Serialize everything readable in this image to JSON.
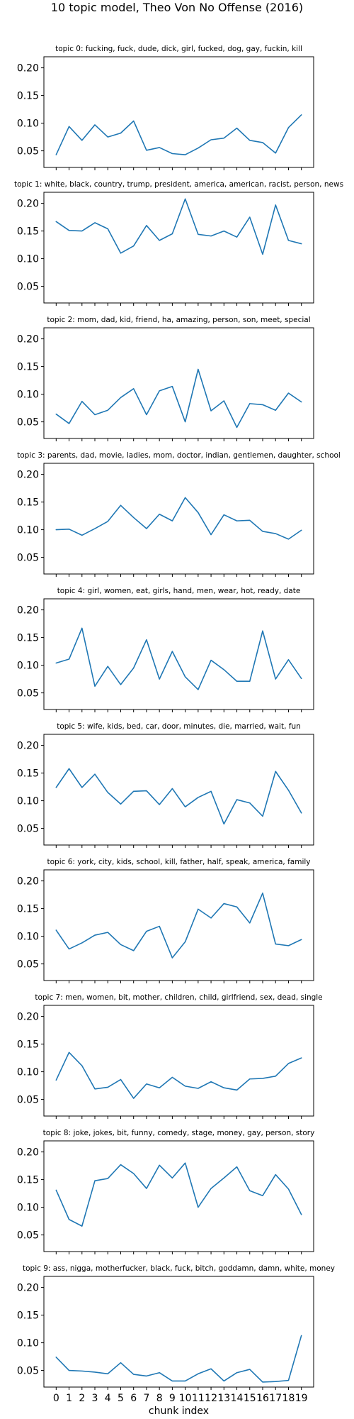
{
  "figure": {
    "title": "10 topic model, Theo Von No Offense (2016)"
  },
  "chart_data": [
    {
      "type": "line",
      "title": "topic 0: fucking, fuck, dude, dick, girl, fucked, dog, gay, fuckin, kill",
      "xlabel": "",
      "ylabel": "",
      "x": [
        0,
        1,
        2,
        3,
        4,
        5,
        6,
        7,
        8,
        9,
        10,
        11,
        12,
        13,
        14,
        15,
        16,
        17,
        18,
        19
      ],
      "ylim": [
        0.02,
        0.22
      ],
      "yticks": [
        "0.05",
        "0.10",
        "0.15",
        "0.20"
      ],
      "grid": false,
      "values": [
        0.043,
        0.094,
        0.069,
        0.097,
        0.075,
        0.082,
        0.104,
        0.051,
        0.056,
        0.045,
        0.043,
        0.055,
        0.07,
        0.073,
        0.091,
        0.069,
        0.065,
        0.046,
        0.092,
        0.115
      ]
    },
    {
      "type": "line",
      "title": "topic 1: white, black, country, trump, president, america, american, racist, person, news",
      "xlabel": "",
      "ylabel": "",
      "x": [
        0,
        1,
        2,
        3,
        4,
        5,
        6,
        7,
        8,
        9,
        10,
        11,
        12,
        13,
        14,
        15,
        16,
        17,
        18,
        19
      ],
      "ylim": [
        0.02,
        0.22
      ],
      "yticks": [
        "0.05",
        "0.10",
        "0.15",
        "0.20"
      ],
      "grid": false,
      "values": [
        0.167,
        0.151,
        0.15,
        0.165,
        0.154,
        0.11,
        0.123,
        0.16,
        0.133,
        0.145,
        0.208,
        0.144,
        0.141,
        0.15,
        0.139,
        0.175,
        0.108,
        0.197,
        0.133,
        0.127
      ]
    },
    {
      "type": "line",
      "title": "topic 2: mom, dad, kid, friend, ha, amazing, person, son, meet, special",
      "xlabel": "",
      "ylabel": "",
      "x": [
        0,
        1,
        2,
        3,
        4,
        5,
        6,
        7,
        8,
        9,
        10,
        11,
        12,
        13,
        14,
        15,
        16,
        17,
        18,
        19
      ],
      "ylim": [
        0.02,
        0.22
      ],
      "yticks": [
        "0.05",
        "0.10",
        "0.15",
        "0.20"
      ],
      "grid": false,
      "values": [
        0.064,
        0.047,
        0.087,
        0.063,
        0.071,
        0.094,
        0.11,
        0.063,
        0.106,
        0.114,
        0.05,
        0.145,
        0.07,
        0.088,
        0.04,
        0.083,
        0.081,
        0.071,
        0.102,
        0.086
      ]
    },
    {
      "type": "line",
      "title": "topic 3: parents, dad, movie, ladies, mom, doctor, indian, gentlemen, daughter, school",
      "xlabel": "",
      "ylabel": "",
      "x": [
        0,
        1,
        2,
        3,
        4,
        5,
        6,
        7,
        8,
        9,
        10,
        11,
        12,
        13,
        14,
        15,
        16,
        17,
        18,
        19
      ],
      "ylim": [
        0.02,
        0.22
      ],
      "yticks": [
        "0.05",
        "0.10",
        "0.15",
        "0.20"
      ],
      "grid": false,
      "values": [
        0.1,
        0.101,
        0.09,
        0.102,
        0.115,
        0.144,
        0.122,
        0.102,
        0.128,
        0.116,
        0.158,
        0.131,
        0.091,
        0.127,
        0.116,
        0.117,
        0.097,
        0.093,
        0.083,
        0.099
      ]
    },
    {
      "type": "line",
      "title": "topic 4: girl, women, eat, girls, hand, men, wear, hot, ready, date",
      "xlabel": "",
      "ylabel": "",
      "x": [
        0,
        1,
        2,
        3,
        4,
        5,
        6,
        7,
        8,
        9,
        10,
        11,
        12,
        13,
        14,
        15,
        16,
        17,
        18,
        19
      ],
      "ylim": [
        0.02,
        0.22
      ],
      "yticks": [
        "0.05",
        "0.10",
        "0.15",
        "0.20"
      ],
      "grid": false,
      "values": [
        0.104,
        0.111,
        0.167,
        0.062,
        0.098,
        0.065,
        0.095,
        0.146,
        0.075,
        0.125,
        0.079,
        0.056,
        0.109,
        0.092,
        0.071,
        0.071,
        0.162,
        0.075,
        0.11,
        0.076
      ]
    },
    {
      "type": "line",
      "title": "topic 5: wife, kids, bed, car, door, minutes, die, married, wait, fun",
      "xlabel": "",
      "ylabel": "",
      "x": [
        0,
        1,
        2,
        3,
        4,
        5,
        6,
        7,
        8,
        9,
        10,
        11,
        12,
        13,
        14,
        15,
        16,
        17,
        18,
        19
      ],
      "ylim": [
        0.02,
        0.22
      ],
      "yticks": [
        "0.05",
        "0.10",
        "0.15",
        "0.20"
      ],
      "grid": false,
      "values": [
        0.124,
        0.158,
        0.124,
        0.148,
        0.115,
        0.094,
        0.117,
        0.118,
        0.093,
        0.122,
        0.089,
        0.106,
        0.117,
        0.058,
        0.102,
        0.096,
        0.072,
        0.153,
        0.119,
        0.078
      ]
    },
    {
      "type": "line",
      "title": "topic 6: york, city, kids, school, kill, father, half, speak, america, family",
      "xlabel": "",
      "ylabel": "",
      "x": [
        0,
        1,
        2,
        3,
        4,
        5,
        6,
        7,
        8,
        9,
        10,
        11,
        12,
        13,
        14,
        15,
        16,
        17,
        18,
        19
      ],
      "ylim": [
        0.02,
        0.22
      ],
      "yticks": [
        "0.05",
        "0.10",
        "0.15",
        "0.20"
      ],
      "grid": false,
      "values": [
        0.111,
        0.077,
        0.088,
        0.102,
        0.107,
        0.085,
        0.074,
        0.109,
        0.118,
        0.061,
        0.09,
        0.149,
        0.133,
        0.159,
        0.153,
        0.124,
        0.178,
        0.086,
        0.083,
        0.094
      ]
    },
    {
      "type": "line",
      "title": "topic 7: men, women, bit, mother, children, child, girlfriend, sex, dead, single",
      "xlabel": "",
      "ylabel": "",
      "x": [
        0,
        1,
        2,
        3,
        4,
        5,
        6,
        7,
        8,
        9,
        10,
        11,
        12,
        13,
        14,
        15,
        16,
        17,
        18,
        19
      ],
      "ylim": [
        0.02,
        0.22
      ],
      "yticks": [
        "0.05",
        "0.10",
        "0.15",
        "0.20"
      ],
      "grid": false,
      "values": [
        0.085,
        0.135,
        0.111,
        0.069,
        0.072,
        0.086,
        0.052,
        0.078,
        0.071,
        0.09,
        0.074,
        0.07,
        0.082,
        0.071,
        0.067,
        0.087,
        0.088,
        0.092,
        0.115,
        0.125
      ]
    },
    {
      "type": "line",
      "title": "topic 8: joke, jokes, bit, funny, comedy, stage, money, gay, person, story",
      "xlabel": "",
      "ylabel": "",
      "x": [
        0,
        1,
        2,
        3,
        4,
        5,
        6,
        7,
        8,
        9,
        10,
        11,
        12,
        13,
        14,
        15,
        16,
        17,
        18,
        19
      ],
      "ylim": [
        0.02,
        0.22
      ],
      "yticks": [
        "0.05",
        "0.10",
        "0.15",
        "0.20"
      ],
      "grid": false,
      "values": [
        0.131,
        0.078,
        0.066,
        0.148,
        0.152,
        0.177,
        0.161,
        0.134,
        0.176,
        0.153,
        0.18,
        0.1,
        0.134,
        0.153,
        0.173,
        0.13,
        0.121,
        0.159,
        0.133,
        0.087
      ]
    },
    {
      "type": "line",
      "title": "topic 9: ass, nigga, motherfucker, black, fuck, bitch, goddamn, damn, white, money",
      "xlabel": "chunk index",
      "ylabel": "",
      "x": [
        0,
        1,
        2,
        3,
        4,
        5,
        6,
        7,
        8,
        9,
        10,
        11,
        12,
        13,
        14,
        15,
        16,
        17,
        18,
        19
      ],
      "ylim": [
        0.02,
        0.22
      ],
      "yticks": [
        "0.05",
        "0.10",
        "0.15",
        "0.20"
      ],
      "grid": false,
      "values": [
        0.074,
        0.05,
        0.049,
        0.047,
        0.044,
        0.064,
        0.043,
        0.04,
        0.046,
        0.031,
        0.031,
        0.044,
        0.053,
        0.031,
        0.046,
        0.052,
        0.029,
        0.03,
        0.032,
        0.113
      ]
    }
  ]
}
